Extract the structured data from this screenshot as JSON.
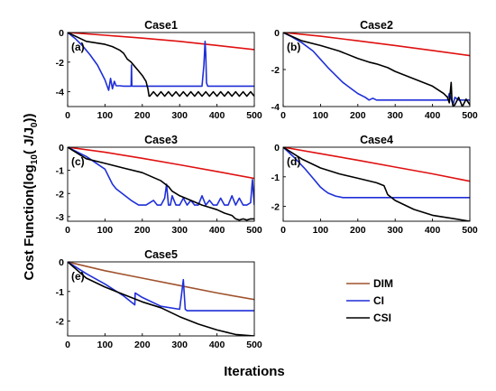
{
  "figure": {
    "ylabel_main": "Cost Function(log",
    "ylabel_sub": "10",
    "ylabel_mid": "( J/J",
    "ylabel_sub2": "0",
    "ylabel_end": "))",
    "xlabel": "Iterations"
  },
  "legend": [
    {
      "label": "DIM",
      "color": "#a0522d"
    },
    {
      "label": "CI",
      "color": "#1f2fd8"
    },
    {
      "label": "CSI",
      "color": "#000000"
    }
  ],
  "chart_data": [
    {
      "type": "line",
      "title": "Case1",
      "panel_label": "(a)",
      "xlim": [
        0,
        500
      ],
      "ylim": [
        -5,
        0
      ],
      "xticks": [
        "0",
        "100",
        "200",
        "300",
        "400",
        "500"
      ],
      "yticks": [
        "0",
        "-2",
        "-4"
      ],
      "series": [
        {
          "name": "DIM",
          "color": "#e01010",
          "x": [
            0,
            100,
            200,
            300,
            400,
            500
          ],
          "y": [
            0,
            -0.18,
            -0.38,
            -0.6,
            -0.87,
            -1.15
          ]
        },
        {
          "name": "CI",
          "color": "#1f2fd8",
          "x": [
            0,
            20,
            40,
            60,
            80,
            100,
            110,
            115,
            120,
            125,
            130,
            135,
            140,
            150,
            170,
            171,
            172,
            173,
            180,
            200,
            250,
            300,
            360,
            365,
            368,
            370,
            372,
            375,
            380,
            400,
            450,
            500
          ],
          "y": [
            0,
            -0.4,
            -0.9,
            -1.5,
            -2.2,
            -3.2,
            -3.9,
            -3.1,
            -3.8,
            -3.3,
            -3.6,
            -3.6,
            -3.6,
            -3.62,
            -3.62,
            -2.2,
            -3.6,
            -3.62,
            -3.62,
            -3.62,
            -3.62,
            -3.62,
            -3.62,
            -2.2,
            -0.6,
            -1.5,
            -3.4,
            -3.62,
            -3.62,
            -3.62,
            -3.62,
            -3.62
          ]
        },
        {
          "name": "CSI",
          "color": "#000000",
          "x": [
            0,
            50,
            100,
            120,
            140,
            150,
            160,
            170,
            180,
            190,
            200,
            210,
            215,
            218,
            220,
            230,
            240,
            250,
            260,
            270,
            280,
            290,
            300,
            310,
            320,
            330,
            340,
            350,
            360,
            370,
            380,
            390,
            400,
            410,
            420,
            430,
            440,
            450,
            460,
            470,
            480,
            490,
            500
          ],
          "y": [
            0,
            -0.6,
            -0.8,
            -0.95,
            -1.2,
            -1.4,
            -1.8,
            -2.0,
            -2.3,
            -2.6,
            -2.9,
            -3.3,
            -3.8,
            -4.3,
            -4.3,
            -4.0,
            -4.3,
            -4.0,
            -4.3,
            -4.0,
            -4.3,
            -4.0,
            -4.3,
            -4.0,
            -4.3,
            -4.0,
            -4.3,
            -4.0,
            -4.3,
            -4.0,
            -4.3,
            -4.0,
            -4.3,
            -4.0,
            -4.3,
            -4.0,
            -4.3,
            -4.0,
            -4.3,
            -4.0,
            -4.3,
            -4.0,
            -4.3
          ]
        }
      ]
    },
    {
      "type": "line",
      "title": "Case2",
      "panel_label": "(b)",
      "xlim": [
        0,
        500
      ],
      "ylim": [
        -4,
        0
      ],
      "xticks": [
        "0",
        "100",
        "200",
        "300",
        "400",
        "500"
      ],
      "yticks": [
        "0",
        "-2",
        "-4"
      ],
      "series": [
        {
          "name": "DIM",
          "color": "#e01010",
          "x": [
            0,
            100,
            200,
            300,
            400,
            500
          ],
          "y": [
            0,
            -0.2,
            -0.45,
            -0.7,
            -0.97,
            -1.25
          ]
        },
        {
          "name": "CI",
          "color": "#1f2fd8",
          "x": [
            0,
            20,
            50,
            80,
            100,
            120,
            140,
            160,
            180,
            200,
            220,
            230,
            240,
            250,
            270,
            280,
            300,
            350,
            400,
            440,
            445,
            450,
            455,
            460,
            470,
            480,
            500
          ],
          "y": [
            0,
            -0.2,
            -0.55,
            -1.0,
            -1.45,
            -1.9,
            -2.3,
            -2.7,
            -3.0,
            -3.3,
            -3.5,
            -3.65,
            -3.55,
            -3.65,
            -3.65,
            -3.65,
            -3.65,
            -3.65,
            -3.65,
            -3.65,
            -3.3,
            -3.6,
            -3.9,
            -3.5,
            -3.65,
            -3.65,
            -3.65
          ]
        },
        {
          "name": "CSI",
          "color": "#000000",
          "x": [
            0,
            50,
            100,
            150,
            200,
            230,
            240,
            250,
            280,
            300,
            350,
            400,
            430,
            440,
            445,
            450,
            452,
            455,
            460,
            470,
            480,
            490,
            500
          ],
          "y": [
            0,
            -0.45,
            -0.7,
            -1.0,
            -1.4,
            -1.6,
            -1.65,
            -1.7,
            -1.9,
            -2.1,
            -2.5,
            -2.9,
            -3.3,
            -3.5,
            -3.8,
            -2.7,
            -3.6,
            -4.0,
            -3.9,
            -3.5,
            -4.0,
            -3.6,
            -3.9
          ]
        }
      ]
    },
    {
      "type": "line",
      "title": "Case3",
      "panel_label": "(c)",
      "xlim": [
        0,
        500
      ],
      "ylim": [
        -3.2,
        0
      ],
      "xticks": [
        "0",
        "100",
        "200",
        "300",
        "400",
        "500"
      ],
      "yticks": [
        "0",
        "-1",
        "-2",
        "-3"
      ],
      "series": [
        {
          "name": "DIM",
          "color": "#e01010",
          "x": [
            0,
            100,
            200,
            300,
            400,
            500
          ],
          "y": [
            0,
            -0.22,
            -0.48,
            -0.76,
            -1.05,
            -1.35
          ]
        },
        {
          "name": "CI",
          "color": "#1f2fd8",
          "x": [
            0,
            50,
            100,
            120,
            130,
            150,
            170,
            190,
            200,
            210,
            230,
            240,
            250,
            260,
            265,
            270,
            275,
            280,
            290,
            300,
            310,
            320,
            330,
            340,
            350,
            360,
            370,
            380,
            390,
            400,
            410,
            420,
            430,
            440,
            450,
            460,
            470,
            480,
            490,
            495,
            500
          ],
          "y": [
            0,
            -0.4,
            -0.95,
            -1.6,
            -1.8,
            -2.05,
            -2.3,
            -2.5,
            -2.5,
            -2.5,
            -2.3,
            -2.5,
            -2.5,
            -2.2,
            -1.6,
            -2.5,
            -2.5,
            -2.1,
            -2.5,
            -2.5,
            -2.2,
            -2.5,
            -2.3,
            -2.5,
            -2.5,
            -2.1,
            -2.5,
            -2.3,
            -2.5,
            -2.5,
            -2.2,
            -2.5,
            -2.5,
            -2.1,
            -2.5,
            -2.2,
            -2.5,
            -2.5,
            -2.4,
            -1.4,
            -2.5
          ]
        },
        {
          "name": "CSI",
          "color": "#000000",
          "x": [
            0,
            50,
            100,
            150,
            200,
            250,
            270,
            280,
            300,
            330,
            360,
            380,
            400,
            420,
            440,
            450,
            460,
            470,
            480,
            490,
            500
          ],
          "y": [
            0,
            -0.5,
            -0.7,
            -0.9,
            -1.1,
            -1.45,
            -1.7,
            -1.9,
            -2.1,
            -2.3,
            -2.5,
            -2.6,
            -2.7,
            -2.85,
            -2.95,
            -3.1,
            -3.15,
            -3.1,
            -3.15,
            -3.1,
            -3.1
          ]
        }
      ]
    },
    {
      "type": "line",
      "title": "Case4",
      "panel_label": "(d)",
      "xlim": [
        0,
        500
      ],
      "ylim": [
        -2.5,
        0
      ],
      "xticks": [
        "0",
        "100",
        "200",
        "300",
        "400",
        "500"
      ],
      "yticks": [
        "0",
        "-1",
        "-2"
      ],
      "series": [
        {
          "name": "DIM",
          "color": "#e01010",
          "x": [
            0,
            100,
            200,
            300,
            400,
            500
          ],
          "y": [
            0,
            -0.22,
            -0.44,
            -0.67,
            -0.9,
            -1.15
          ]
        },
        {
          "name": "CI",
          "color": "#1f2fd8",
          "x": [
            0,
            30,
            60,
            80,
            100,
            110,
            120,
            140,
            160,
            180,
            200,
            300,
            400,
            500
          ],
          "y": [
            0,
            -0.35,
            -0.75,
            -1.05,
            -1.35,
            -1.45,
            -1.55,
            -1.65,
            -1.7,
            -1.7,
            -1.7,
            -1.7,
            -1.7,
            -1.7
          ]
        },
        {
          "name": "CSI",
          "color": "#000000",
          "x": [
            0,
            50,
            100,
            150,
            200,
            250,
            270,
            280,
            300,
            350,
            400,
            450,
            500
          ],
          "y": [
            0,
            -0.4,
            -0.7,
            -0.9,
            -1.05,
            -1.2,
            -1.3,
            -1.6,
            -1.8,
            -2.1,
            -2.3,
            -2.4,
            -2.5
          ]
        }
      ]
    },
    {
      "type": "line",
      "title": "Case5",
      "panel_label": "(e)",
      "xlim": [
        0,
        500
      ],
      "ylim": [
        -2.5,
        0
      ],
      "xticks": [
        "0",
        "100",
        "200",
        "300",
        "400",
        "500"
      ],
      "yticks": [
        "0",
        "-1",
        "-2"
      ],
      "series": [
        {
          "name": "DIM",
          "color": "#a0522d",
          "x": [
            0,
            100,
            200,
            300,
            400,
            500
          ],
          "y": [
            0,
            -0.3,
            -0.55,
            -0.8,
            -1.05,
            -1.27
          ]
        },
        {
          "name": "CI",
          "color": "#1f2fd8",
          "x": [
            0,
            50,
            100,
            150,
            180,
            181,
            200,
            250,
            300,
            305,
            310,
            315,
            320,
            350,
            400,
            450,
            500
          ],
          "y": [
            0,
            -0.4,
            -0.75,
            -1.15,
            -1.45,
            -1.05,
            -1.2,
            -1.5,
            -1.6,
            -1.1,
            -0.6,
            -1.6,
            -1.65,
            -1.65,
            -1.65,
            -1.65,
            -1.65
          ]
        },
        {
          "name": "CSI",
          "color": "#000000",
          "x": [
            0,
            50,
            100,
            150,
            200,
            250,
            300,
            350,
            400,
            450,
            500
          ],
          "y": [
            0,
            -0.55,
            -0.85,
            -1.1,
            -1.35,
            -1.55,
            -1.85,
            -2.1,
            -2.3,
            -2.45,
            -2.5
          ]
        }
      ]
    }
  ]
}
